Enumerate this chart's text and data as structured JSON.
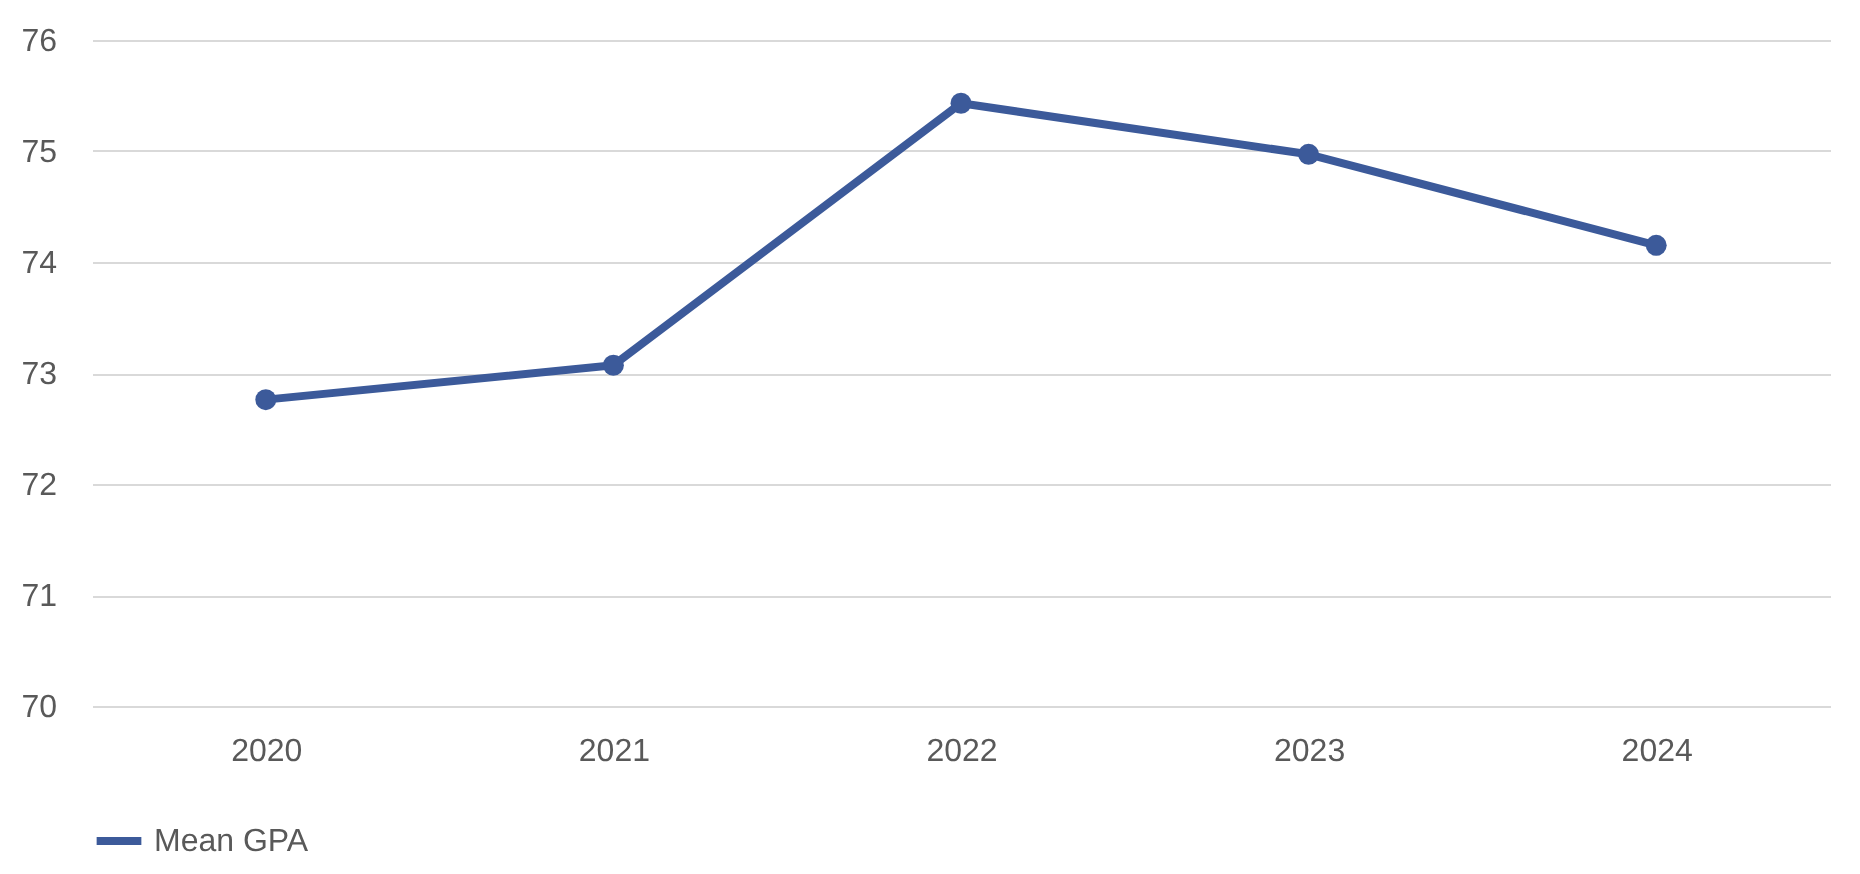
{
  "chart_data": {
    "type": "line",
    "categories": [
      "2020",
      "2021",
      "2022",
      "2023",
      "2024"
    ],
    "series": [
      {
        "name": "Mean GPA",
        "color": "#3c5a9a",
        "values": [
          72.76,
          73.07,
          75.43,
          74.97,
          74.15
        ]
      }
    ],
    "ylim": [
      70,
      76
    ],
    "yticks": [
      70,
      71,
      72,
      73,
      74,
      75,
      76
    ],
    "grid": "y",
    "legend": "bottom",
    "marker": "circle",
    "line_style": "solid"
  }
}
